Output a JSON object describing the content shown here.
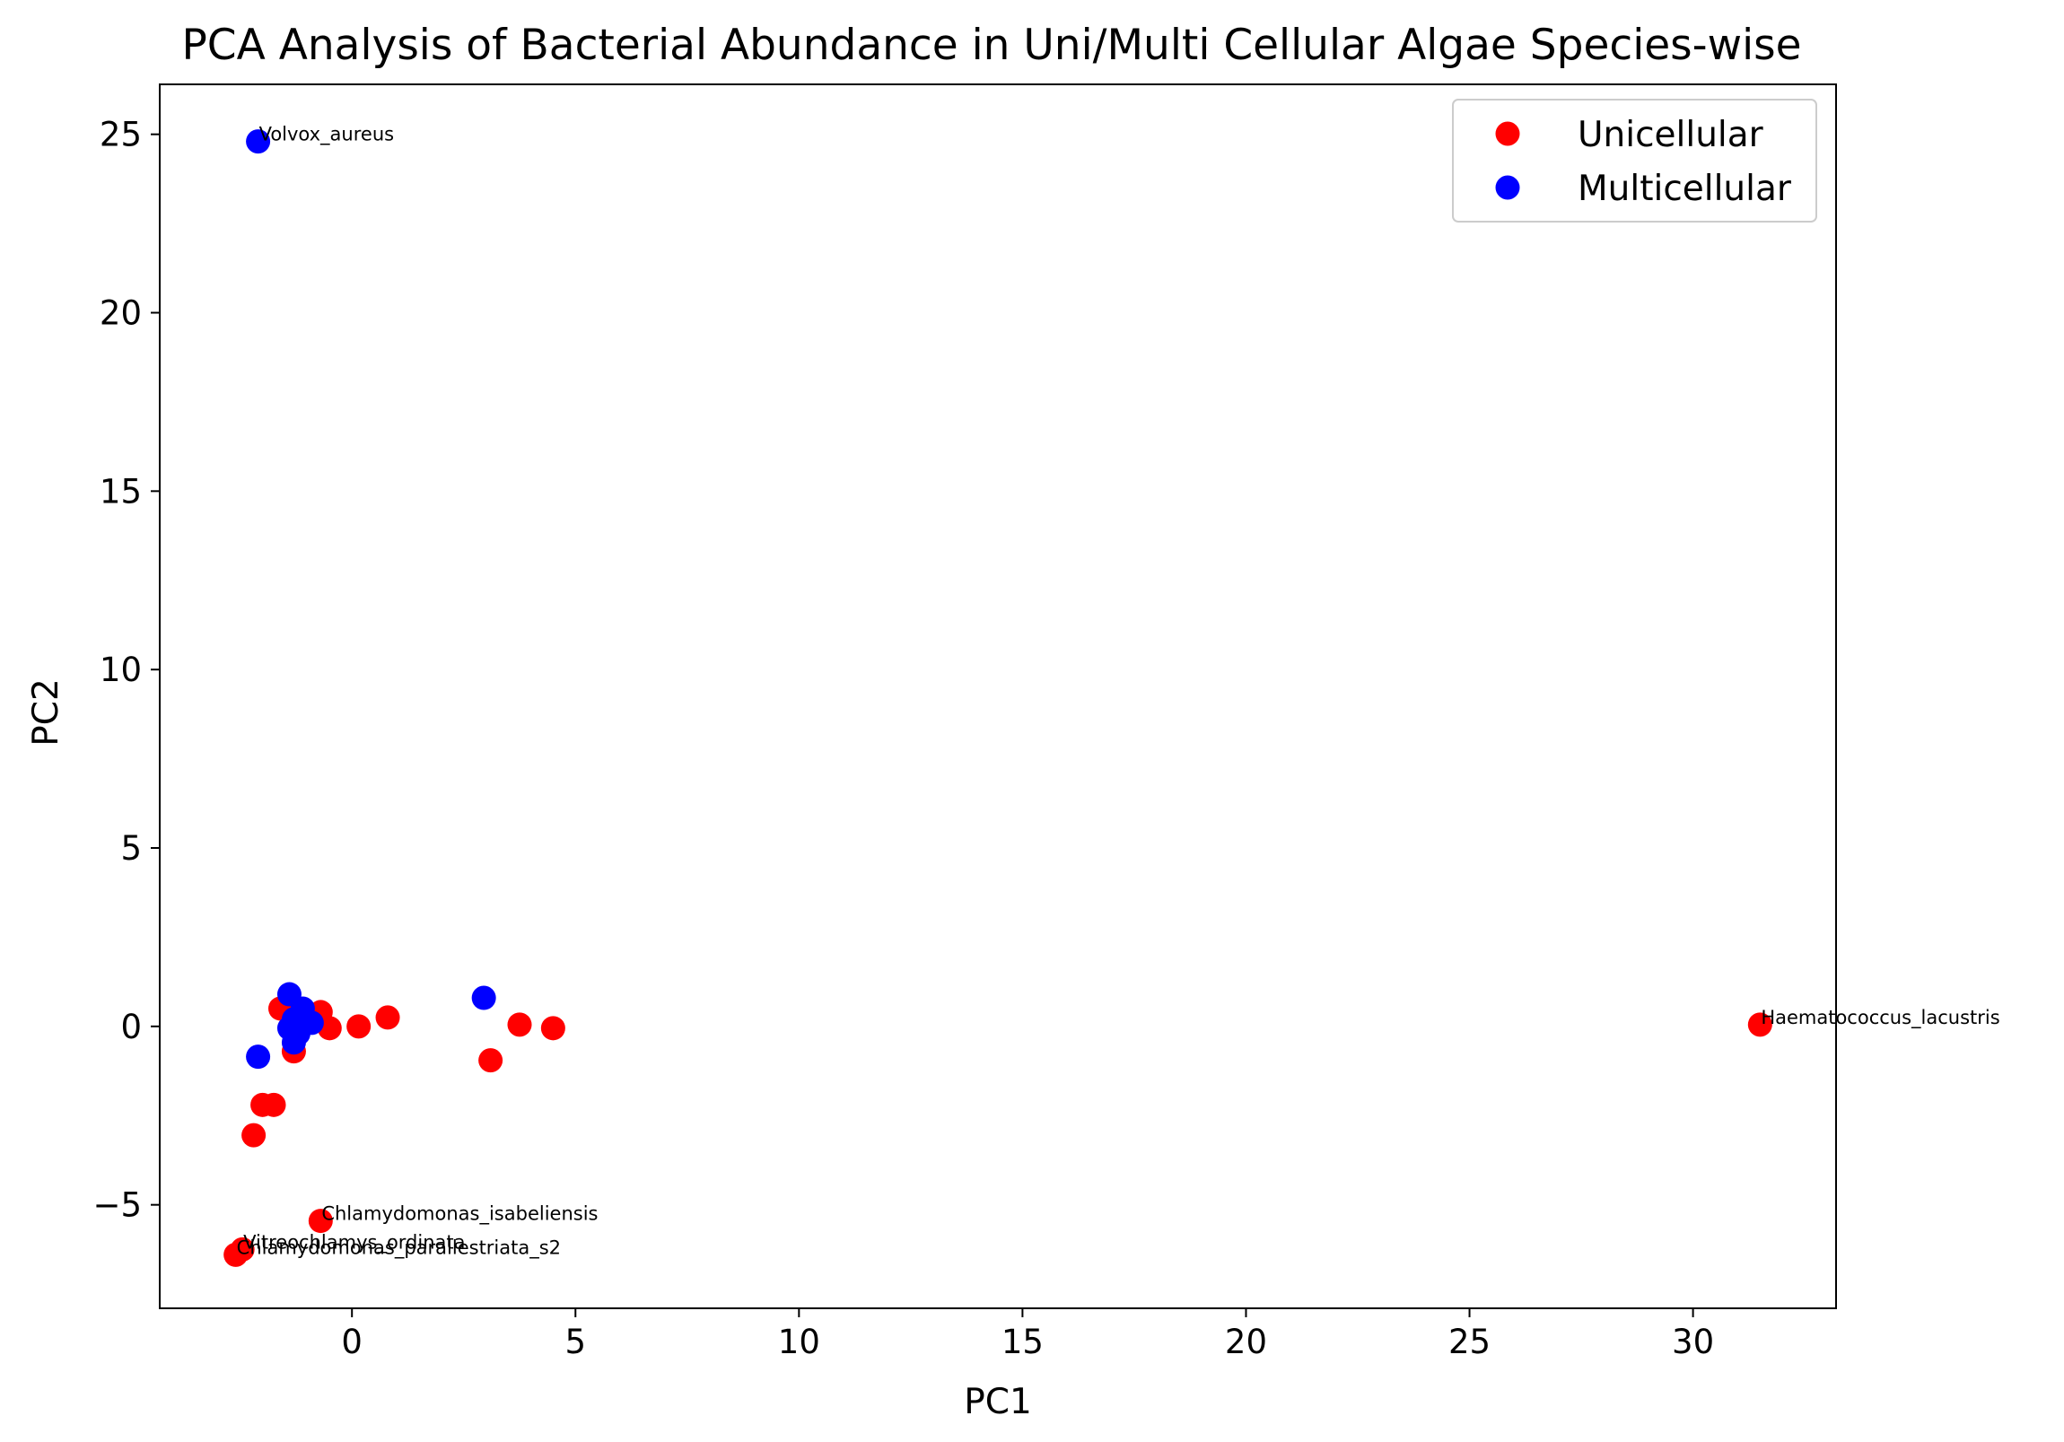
{
  "chart_data": {
    "type": "scatter",
    "title": "PCA Analysis of Bacterial Abundance in Uni/Multi Cellular Algae Species-wise",
    "xlabel": "PC1",
    "ylabel": "PC2",
    "xlim": [
      -4.3,
      33.2
    ],
    "ylim": [
      -7.9,
      26.4
    ],
    "xticks": [
      0,
      5,
      10,
      15,
      20,
      25,
      30
    ],
    "yticks": [
      -5,
      0,
      5,
      10,
      15,
      20,
      25
    ],
    "xtick_labels": [
      "0",
      "5",
      "10",
      "15",
      "20",
      "25",
      "30"
    ],
    "ytick_labels": [
      "−5",
      "0",
      "5",
      "10",
      "15",
      "20",
      "25"
    ],
    "grid": false,
    "legend_position": "top-right",
    "series": [
      {
        "name": "Unicellular",
        "color": "#ff0000",
        "points": [
          {
            "x": -1.6,
            "y": 0.5
          },
          {
            "x": -0.7,
            "y": 0.4
          },
          {
            "x": -0.5,
            "y": -0.05
          },
          {
            "x": 0.15,
            "y": 0.0
          },
          {
            "x": 0.8,
            "y": 0.25
          },
          {
            "x": 3.75,
            "y": 0.05
          },
          {
            "x": 4.5,
            "y": -0.05
          },
          {
            "x": 3.1,
            "y": -0.95
          },
          {
            "x": -1.3,
            "y": -0.7
          },
          {
            "x": -2.0,
            "y": -2.2
          },
          {
            "x": -1.75,
            "y": -2.2
          },
          {
            "x": -2.2,
            "y": -3.05
          },
          {
            "x": -0.7,
            "y": -5.45
          },
          {
            "x": -2.45,
            "y": -6.25
          },
          {
            "x": -2.6,
            "y": -6.4
          },
          {
            "x": 31.5,
            "y": 0.05
          }
        ]
      },
      {
        "name": "Multicellular",
        "color": "#0000ff",
        "points": [
          {
            "x": -2.1,
            "y": 24.8
          },
          {
            "x": 2.95,
            "y": 0.8
          },
          {
            "x": -1.4,
            "y": 0.9
          },
          {
            "x": -1.1,
            "y": 0.5
          },
          {
            "x": -1.3,
            "y": 0.2
          },
          {
            "x": -0.9,
            "y": 0.1
          },
          {
            "x": -1.4,
            "y": -0.05
          },
          {
            "x": -1.2,
            "y": -0.2
          },
          {
            "x": -1.3,
            "y": -0.45
          },
          {
            "x": -2.1,
            "y": -0.85
          }
        ]
      }
    ],
    "annotations": [
      {
        "text": "Volvox_aureus",
        "x": -2.1,
        "y": 24.8
      },
      {
        "text": "Haematococcus_lacustris",
        "x": 31.5,
        "y": 0.05
      },
      {
        "text": "Chlamydomonas_isabeliensis",
        "x": -0.7,
        "y": -5.45
      },
      {
        "text": "Vitreochlamys_ordinata",
        "x": -2.45,
        "y": -6.25
      },
      {
        "text": "Chlamydomonas_parallestriata_s2",
        "x": -2.6,
        "y": -6.4
      }
    ]
  }
}
